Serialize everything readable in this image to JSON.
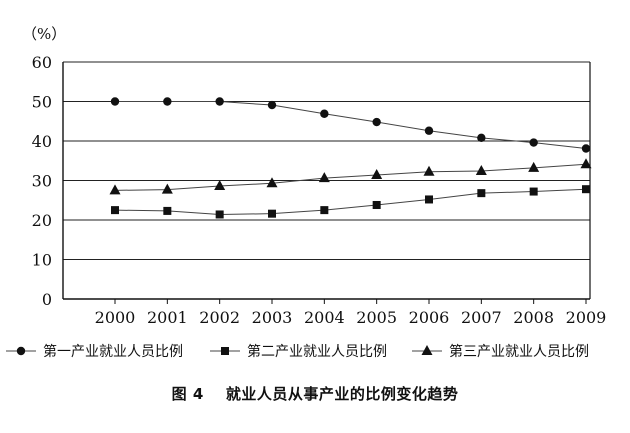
{
  "chart_data": {
    "type": "line",
    "ylabel": "（%）",
    "ylim": [
      0,
      60
    ],
    "yticks": [
      0,
      10,
      20,
      30,
      40,
      50,
      60
    ],
    "x": [
      "2000",
      "2001",
      "2002",
      "2003",
      "2004",
      "2005",
      "2006",
      "2007",
      "2008",
      "2009"
    ],
    "grid": "horizontal",
    "legend_position": "bottom",
    "series": [
      {
        "name": "第一产业就业人员比例",
        "marker": "circle",
        "values": [
          50.0,
          50.0,
          50.0,
          49.1,
          46.9,
          44.8,
          42.6,
          40.8,
          39.6,
          38.1
        ]
      },
      {
        "name": "第二产业就业人员比例",
        "marker": "square",
        "values": [
          22.5,
          22.3,
          21.4,
          21.6,
          22.5,
          23.8,
          25.2,
          26.8,
          27.2,
          27.8
        ]
      },
      {
        "name": "第三产业就业人员比例",
        "marker": "triangle",
        "values": [
          27.5,
          27.7,
          28.6,
          29.3,
          30.6,
          31.4,
          32.2,
          32.4,
          33.2,
          34.1
        ]
      }
    ]
  },
  "caption": {
    "figure_number": "图 4",
    "title": "就业人员从事产业的比例变化趋势"
  }
}
